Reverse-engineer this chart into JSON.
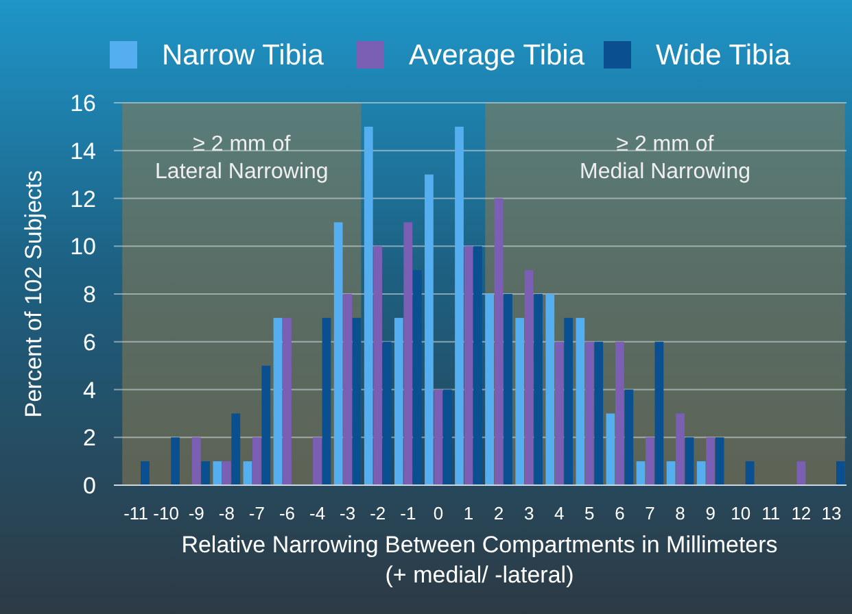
{
  "chart_data": {
    "type": "bar",
    "xlabel": "Relative Narrowing Between Compartments in Millimeters\n(+ medial/ -lateral)",
    "ylabel": "Percent of 102 Subjects",
    "categories": [
      "-11",
      "-10",
      "-9",
      "-8",
      "-7",
      "-6",
      "-4",
      "-3",
      "-2",
      "-1",
      "0",
      "1",
      "2",
      "3",
      "4",
      "5",
      "6",
      "7",
      "8",
      "9",
      "10",
      "11",
      "12",
      "13"
    ],
    "series": [
      {
        "name": "Narrow Tibia",
        "color": "#55aef0",
        "values": [
          0,
          0,
          0,
          1,
          1,
          7,
          0,
          11,
          15,
          7,
          13,
          15,
          8,
          7,
          8,
          7,
          3,
          1,
          1,
          1,
          0,
          0,
          0,
          0
        ]
      },
      {
        "name": "Average Tibia",
        "color": "#7a5fb5",
        "values": [
          0,
          0,
          2,
          1,
          2,
          7,
          2,
          8,
          10,
          11,
          4,
          10,
          12,
          9,
          6,
          6,
          6,
          2,
          3,
          2,
          0,
          0,
          1,
          0
        ]
      },
      {
        "name": "Wide Tibia",
        "color": "#0a4f8f",
        "values": [
          1,
          2,
          1,
          3,
          5,
          0,
          7,
          7,
          6,
          9,
          4,
          10,
          8,
          8,
          7,
          6,
          4,
          6,
          2,
          2,
          1,
          0,
          0,
          1
        ]
      }
    ],
    "ylim": [
      0,
      16
    ],
    "yticks": [
      0,
      2,
      4,
      6,
      8,
      10,
      12,
      14,
      16
    ],
    "grid": "y",
    "legend": "top",
    "bands": [
      {
        "axis": "x",
        "from": "-11",
        "to": "-3",
        "label": "≥ 2 mm of\nLateral Narrowing",
        "color": "#8a7a50"
      },
      {
        "axis": "x",
        "from": "2",
        "to": "13",
        "label": "≥ 2 mm of\nMedial Narrowing",
        "color": "#8a7a50"
      }
    ]
  }
}
